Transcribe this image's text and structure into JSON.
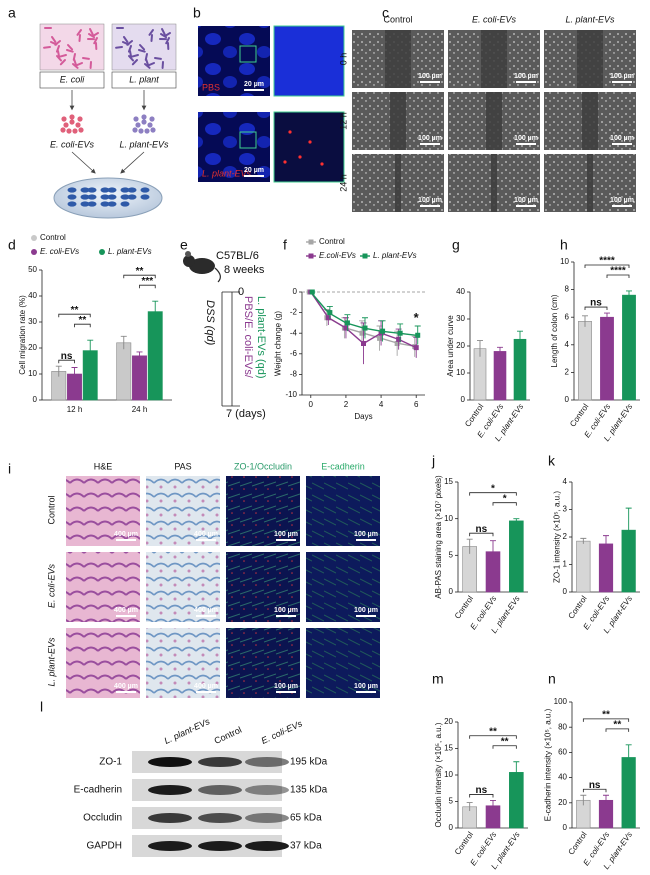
{
  "panel_labels": [
    "a",
    "b",
    "c",
    "d",
    "e",
    "f",
    "g",
    "h",
    "i",
    "j",
    "k",
    "l",
    "m",
    "n"
  ],
  "panel_a": {
    "bacteria": [
      "E. coli",
      "L. plant"
    ],
    "evs": [
      "E. coli-EVs",
      "L. plant-EVs"
    ]
  },
  "panel_b": {
    "conditions": [
      "PBS",
      "L. plant-EVs"
    ],
    "scale_bar": "20 µm"
  },
  "panel_c": {
    "columns": [
      "Control",
      "E. coli-EVs",
      "L. plant-EVs"
    ],
    "rows": [
      "0 h",
      "12 h",
      "24 h"
    ],
    "scale_bar": "100 µm"
  },
  "panel_e": {
    "strain": "C57BL/6",
    "age": "8 weeks",
    "treatment": "DSS (qd)",
    "groups": [
      "PBS/E. coli-EVs/",
      "L. plant-EVs (qd)"
    ],
    "start": "0",
    "end": "7 (days)"
  },
  "panel_i": {
    "columns": [
      "H&E",
      "PAS",
      "ZO-1/Occludin",
      "E-cadherin"
    ],
    "rows": [
      "Control",
      "E. coli-EVs",
      "L. plant-EVs"
    ],
    "scale_bars": [
      "400 µm",
      "100 µm"
    ]
  },
  "panel_n": {
    "lanes": [
      "L. plant-EVs",
      "Control",
      "E. coli-EVs"
    ],
    "proteins": [
      "ZO-1",
      "E-cadherin",
      "Occludin",
      "GAPDH"
    ],
    "sizes": [
      "195 kDa",
      "135 kDa",
      "65 kDa",
      "37 kDa"
    ]
  },
  "chart_data": [
    {
      "type": "bar",
      "ylabel": "Cell migration rate (%)",
      "categories": [
        "12 h",
        "24 h"
      ],
      "series": [
        {
          "name": "Control",
          "color": "#c9c9c9",
          "values": [
            11,
            22
          ],
          "errors": [
            2,
            2.5
          ]
        },
        {
          "name": "E. coli-EVs",
          "color": "#8b3a8f",
          "values": [
            10,
            17
          ],
          "errors": [
            2.5,
            1.5
          ]
        },
        {
          "name": "L. plant-EVs",
          "color": "#17955a",
          "values": [
            19,
            34
          ],
          "errors": [
            4,
            4
          ]
        }
      ],
      "ylim": [
        0,
        50
      ],
      "yticks": [
        0,
        10,
        20,
        30,
        40,
        50
      ],
      "significance": [
        "ns",
        "**",
        "**",
        "**",
        "***"
      ]
    },
    {
      "type": "line",
      "xlabel": "Days",
      "ylabel": "Weight change (g)",
      "x": [
        0,
        1,
        2,
        3,
        4,
        5,
        6
      ],
      "series": [
        {
          "name": "Control",
          "color": "#a6a6a6",
          "values": [
            0,
            -2.5,
            -3.5,
            -4,
            -4.5,
            -5,
            -5.3
          ],
          "errors": [
            0,
            0.8,
            1,
            1.2,
            1.2,
            1.2,
            1
          ]
        },
        {
          "name": "E.coli-EVs",
          "color": "#8b3a8f",
          "values": [
            0,
            -2.5,
            -3.5,
            -5,
            -4,
            -4.6,
            -5.4
          ],
          "errors": [
            0,
            0.7,
            1,
            2,
            1.2,
            1,
            1
          ]
        },
        {
          "name": "L. plant-EVs",
          "color": "#17955a",
          "values": [
            0,
            -2,
            -3,
            -3.5,
            -3.8,
            -4,
            -4.2
          ],
          "errors": [
            0,
            0.6,
            0.8,
            1,
            1,
            0.9,
            0.9
          ]
        }
      ],
      "xlim": [
        -0.5,
        6.5
      ],
      "xticks": [
        0,
        2,
        4,
        6
      ],
      "ylim": [
        -10,
        0
      ],
      "yticks": [
        -10,
        -8,
        -6,
        -4,
        -2,
        0
      ],
      "annotations": [
        "*"
      ]
    },
    {
      "type": "bar",
      "ylabel": "Area under curve",
      "categories": [
        "Control",
        "E. coli-EVs",
        "L. plant-EVs"
      ],
      "values": [
        19,
        18,
        22.5
      ],
      "errors": [
        3,
        1.5,
        3
      ],
      "colors": [
        "#d6d6d6",
        "#8b3a8f",
        "#17955a"
      ],
      "ylim": [
        0,
        40
      ],
      "yticks": [
        0,
        10,
        20,
        30,
        40
      ]
    },
    {
      "type": "bar",
      "ylabel": "Length of colon (cm)",
      "categories": [
        "Control",
        "E. coli-EVs",
        "L. plant-EVs"
      ],
      "values": [
        5.7,
        6.0,
        7.6
      ],
      "errors": [
        0.4,
        0.3,
        0.3
      ],
      "colors": [
        "#d6d6d6",
        "#8b3a8f",
        "#17955a"
      ],
      "ylim": [
        0,
        10
      ],
      "yticks": [
        0,
        2,
        4,
        6,
        8,
        10
      ],
      "significance": [
        "****",
        "ns",
        "****"
      ]
    },
    {
      "type": "bar",
      "ylabel": "AB-PAS staining area (×10⁷ pixels)",
      "categories": [
        "Control",
        "E. coli-EVs",
        "L. plant-EVs"
      ],
      "values": [
        6.2,
        5.5,
        9.7
      ],
      "errors": [
        1,
        1.5,
        0.3
      ],
      "colors": [
        "#d6d6d6",
        "#8b3a8f",
        "#17955a"
      ],
      "ylim": [
        0,
        15
      ],
      "yticks": [
        0,
        5,
        10,
        15
      ],
      "significance": [
        "*",
        "ns",
        "*"
      ]
    },
    {
      "type": "bar",
      "ylabel": "ZO-1 intensity (×10⁵, a.u.)",
      "categories": [
        "Control",
        "E. coli-EVs",
        "L. plant-EVs"
      ],
      "values": [
        1.85,
        1.75,
        2.25
      ],
      "errors": [
        0.1,
        0.3,
        0.8
      ],
      "colors": [
        "#d6d6d6",
        "#8b3a8f",
        "#17955a"
      ],
      "ylim": [
        0,
        4
      ],
      "yticks": [
        0,
        1,
        2,
        3,
        4
      ]
    },
    {
      "type": "bar",
      "ylabel": "Occludin intensity (×10⁵, a.u.)",
      "categories": [
        "Control",
        "E. coli-EVs",
        "L. plant-EVs"
      ],
      "values": [
        4,
        4.2,
        10.5
      ],
      "errors": [
        0.8,
        1,
        2
      ],
      "colors": [
        "#d6d6d6",
        "#8b3a8f",
        "#17955a"
      ],
      "ylim": [
        0,
        20
      ],
      "yticks": [
        0,
        5,
        10,
        15,
        20
      ],
      "significance": [
        "**",
        "ns",
        "**"
      ]
    },
    {
      "type": "bar",
      "ylabel": "E-cadherin intensity (×10⁵, a.u.)",
      "categories": [
        "Control",
        "E. coli-EVs",
        "L. plant-EVs"
      ],
      "values": [
        22,
        22,
        56
      ],
      "errors": [
        4,
        4,
        10
      ],
      "colors": [
        "#d6d6d6",
        "#8b3a8f",
        "#17955a"
      ],
      "ylim": [
        0,
        100
      ],
      "yticks": [
        0,
        20,
        40,
        60,
        80,
        100
      ],
      "significance": [
        "**",
        "ns",
        "**"
      ]
    }
  ]
}
